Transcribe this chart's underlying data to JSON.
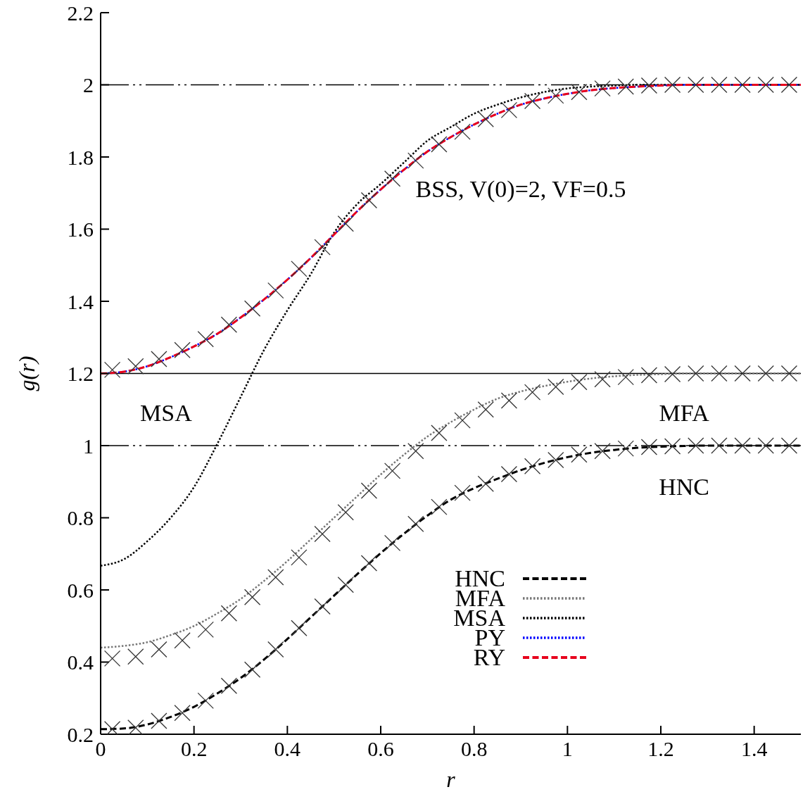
{
  "chart_data": {
    "type": "line",
    "xlabel": "r",
    "ylabel": "g(r)",
    "xlim": [
      0,
      1.5
    ],
    "ylim": [
      0.2,
      2.2
    ],
    "xticks": [
      0,
      0.2,
      0.4,
      0.6,
      0.8,
      1,
      1.2,
      1.4
    ],
    "yticks": [
      0.2,
      0.4,
      0.6,
      0.8,
      1,
      1.2,
      1.4,
      1.6,
      1.8,
      2,
      2.2
    ],
    "grid": false,
    "legend": "bottom right",
    "marker": "none",
    "x": [
      0,
      0.05,
      0.1,
      0.15,
      0.2,
      0.25,
      0.3,
      0.35,
      0.4,
      0.45,
      0.5,
      0.55,
      0.6,
      0.65,
      0.7,
      0.75,
      0.8,
      0.85,
      0.9,
      0.95,
      1,
      1.05,
      1.1,
      1.15,
      1.2,
      1.25,
      1.3,
      1.35,
      1.4,
      1.45,
      1.5
    ],
    "series": [
      {
        "name": "HNC",
        "color": "#000000",
        "line_style": "dashed",
        "values": [
          0.214,
          0.216,
          0.227,
          0.248,
          0.276,
          0.313,
          0.356,
          0.407,
          0.464,
          0.524,
          0.584,
          0.644,
          0.702,
          0.756,
          0.806,
          0.85,
          0.882,
          0.908,
          0.932,
          0.952,
          0.968,
          0.98,
          0.988,
          0.994,
          0.997,
          0.999,
          1,
          1,
          1,
          1,
          1
        ]
      },
      {
        "name": "MFA",
        "color": "#777777",
        "line_style": "dotted",
        "values": [
          0.44,
          0.445,
          0.455,
          0.475,
          0.5,
          0.535,
          0.575,
          0.625,
          0.68,
          0.74,
          0.8,
          0.86,
          0.92,
          0.975,
          1.025,
          1.065,
          1.1,
          1.13,
          1.15,
          1.165,
          1.177,
          1.186,
          1.192,
          1.196,
          1.198,
          1.2,
          1.2,
          1.2,
          1.2,
          1.2,
          1.2
        ]
      },
      {
        "name": "MSA",
        "color": "#000000",
        "line_style": "dotted",
        "values": [
          0.667,
          0.685,
          0.735,
          0.8,
          0.885,
          1.005,
          1.135,
          1.265,
          1.375,
          1.475,
          1.59,
          1.67,
          1.725,
          1.785,
          1.845,
          1.883,
          1.92,
          1.945,
          1.965,
          1.98,
          1.99,
          1.995,
          1.998,
          2,
          2,
          2,
          2,
          2,
          2,
          2,
          2
        ]
      },
      {
        "name": "PY",
        "color": "#0000ff",
        "line_style": "dotted",
        "values": [
          1.2,
          1.205,
          1.22,
          1.245,
          1.275,
          1.31,
          1.355,
          1.405,
          1.46,
          1.52,
          1.585,
          1.65,
          1.71,
          1.765,
          1.815,
          1.855,
          1.89,
          1.92,
          1.945,
          1.962,
          1.975,
          1.985,
          1.991,
          1.995,
          1.998,
          2,
          2,
          2,
          2,
          2,
          2
        ]
      },
      {
        "name": "RY",
        "color": "#e8001c",
        "line_style": "dashed",
        "values": [
          1.2,
          1.205,
          1.22,
          1.245,
          1.275,
          1.31,
          1.355,
          1.405,
          1.46,
          1.52,
          1.585,
          1.65,
          1.71,
          1.765,
          1.815,
          1.855,
          1.89,
          1.92,
          1.945,
          1.962,
          1.975,
          1.985,
          1.991,
          1.995,
          1.998,
          2,
          2,
          2,
          2,
          2,
          2
        ]
      },
      {
        "type": "scatter",
        "marker": "cross",
        "color": "#333333",
        "x": [
          0.025,
          0.075,
          0.125,
          0.175,
          0.225,
          0.275,
          0.325,
          0.375,
          0.425,
          0.475,
          0.525,
          0.575,
          0.625,
          0.675,
          0.725,
          0.775,
          0.825,
          0.875,
          0.925,
          0.975,
          1.025,
          1.075,
          1.125,
          1.175,
          1.225,
          1.275,
          1.325,
          1.375,
          1.425,
          1.475
        ],
        "values": [
          0.214,
          0.218,
          0.237,
          0.259,
          0.293,
          0.334,
          0.379,
          0.435,
          0.494,
          0.554,
          0.614,
          0.674,
          0.73,
          0.783,
          0.83,
          0.869,
          0.894,
          0.921,
          0.943,
          0.96,
          0.975,
          0.985,
          0.992,
          0.996,
          0.998,
          1,
          1,
          1,
          1,
          1
        ]
      },
      {
        "type": "scatter",
        "marker": "cross",
        "color": "#333333",
        "x": [
          0.025,
          0.075,
          0.125,
          0.175,
          0.225,
          0.275,
          0.325,
          0.375,
          0.425,
          0.475,
          0.525,
          0.575,
          0.625,
          0.675,
          0.725,
          0.775,
          0.825,
          0.875,
          0.925,
          0.975,
          1.025,
          1.075,
          1.125,
          1.175,
          1.225,
          1.275,
          1.325,
          1.375,
          1.425,
          1.475
        ],
        "values": [
          0.41,
          0.415,
          0.435,
          0.46,
          0.49,
          0.535,
          0.58,
          0.635,
          0.69,
          0.755,
          0.815,
          0.875,
          0.93,
          0.985,
          1.035,
          1.07,
          1.1,
          1.125,
          1.148,
          1.163,
          1.176,
          1.184,
          1.19,
          1.195,
          1.198,
          1.2,
          1.2,
          1.2,
          1.2,
          1.2
        ]
      },
      {
        "type": "scatter",
        "marker": "cross",
        "color": "#333333",
        "x": [
          0.025,
          0.075,
          0.125,
          0.175,
          0.225,
          0.275,
          0.325,
          0.375,
          0.425,
          0.475,
          0.525,
          0.575,
          0.625,
          0.675,
          0.725,
          0.775,
          0.825,
          0.875,
          0.925,
          0.975,
          1.025,
          1.075,
          1.125,
          1.175,
          1.225,
          1.275,
          1.325,
          1.375,
          1.425,
          1.475
        ],
        "values": [
          1.21,
          1.22,
          1.24,
          1.265,
          1.295,
          1.335,
          1.38,
          1.43,
          1.49,
          1.55,
          1.615,
          1.68,
          1.74,
          1.79,
          1.835,
          1.87,
          1.905,
          1.93,
          1.955,
          1.97,
          1.98,
          1.99,
          1.995,
          1.998,
          2,
          2,
          2,
          2,
          2,
          2
        ]
      }
    ],
    "ref_lines": [
      {
        "axis": "y",
        "value": 2,
        "color": "#000000",
        "line_style": "dashed"
      },
      {
        "axis": "y",
        "value": 1.2,
        "color": "#000000",
        "line_style": "solid"
      },
      {
        "axis": "y",
        "value": 1,
        "color": "#000000",
        "line_style": "dashed"
      }
    ],
    "annotations": [
      "BSS, V(0)=2, VF=0.5",
      "MSA",
      "MFA",
      "HNC"
    ]
  }
}
